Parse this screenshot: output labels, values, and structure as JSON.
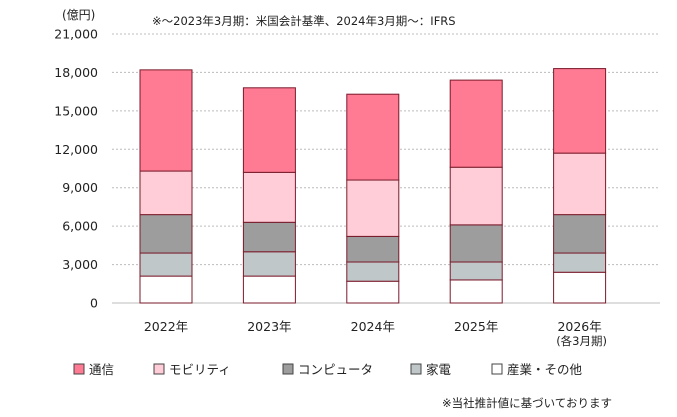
{
  "chart_data": {
    "type": "bar",
    "stacked": true,
    "unit_label": "(億円)",
    "note_top": "※～2023年3月期：米国会計基準、2024年3月期～：IFRS",
    "note_bottom": "※当社推計値に基づいております",
    "categories": [
      "2022年",
      "2023年",
      "2024年",
      "2025年",
      "2026年"
    ],
    "category_sublabels": [
      "",
      "",
      "",
      "",
      "(各3月期)"
    ],
    "y_ticks": [
      "0",
      "3,000",
      "6,000",
      "9,000",
      "12,000",
      "15,000",
      "18,000",
      "21,000"
    ],
    "ylim": [
      0,
      21000
    ],
    "grid": true,
    "legend_position": "bottom",
    "series": [
      {
        "name": "産業・その他",
        "color": "#ffffff",
        "values": [
          2100,
          2100,
          1700,
          1800,
          2400
        ]
      },
      {
        "name": "家電",
        "color": "#bfc7c9",
        "values": [
          1800,
          1900,
          1500,
          1400,
          1500
        ]
      },
      {
        "name": "コンピュータ",
        "color": "#9d9d9d",
        "values": [
          3000,
          2300,
          2000,
          2900,
          3000
        ]
      },
      {
        "name": "モビリティ",
        "color": "#ffcdd7",
        "values": [
          3400,
          3900,
          4400,
          4500,
          4800
        ]
      },
      {
        "name": "通信",
        "color": "#fe7b93",
        "values": [
          7900,
          6600,
          6700,
          6800,
          6600
        ]
      }
    ],
    "legend_order": [
      "通信",
      "モビリティ",
      "コンピュータ",
      "家電",
      "産業・その他"
    ]
  }
}
